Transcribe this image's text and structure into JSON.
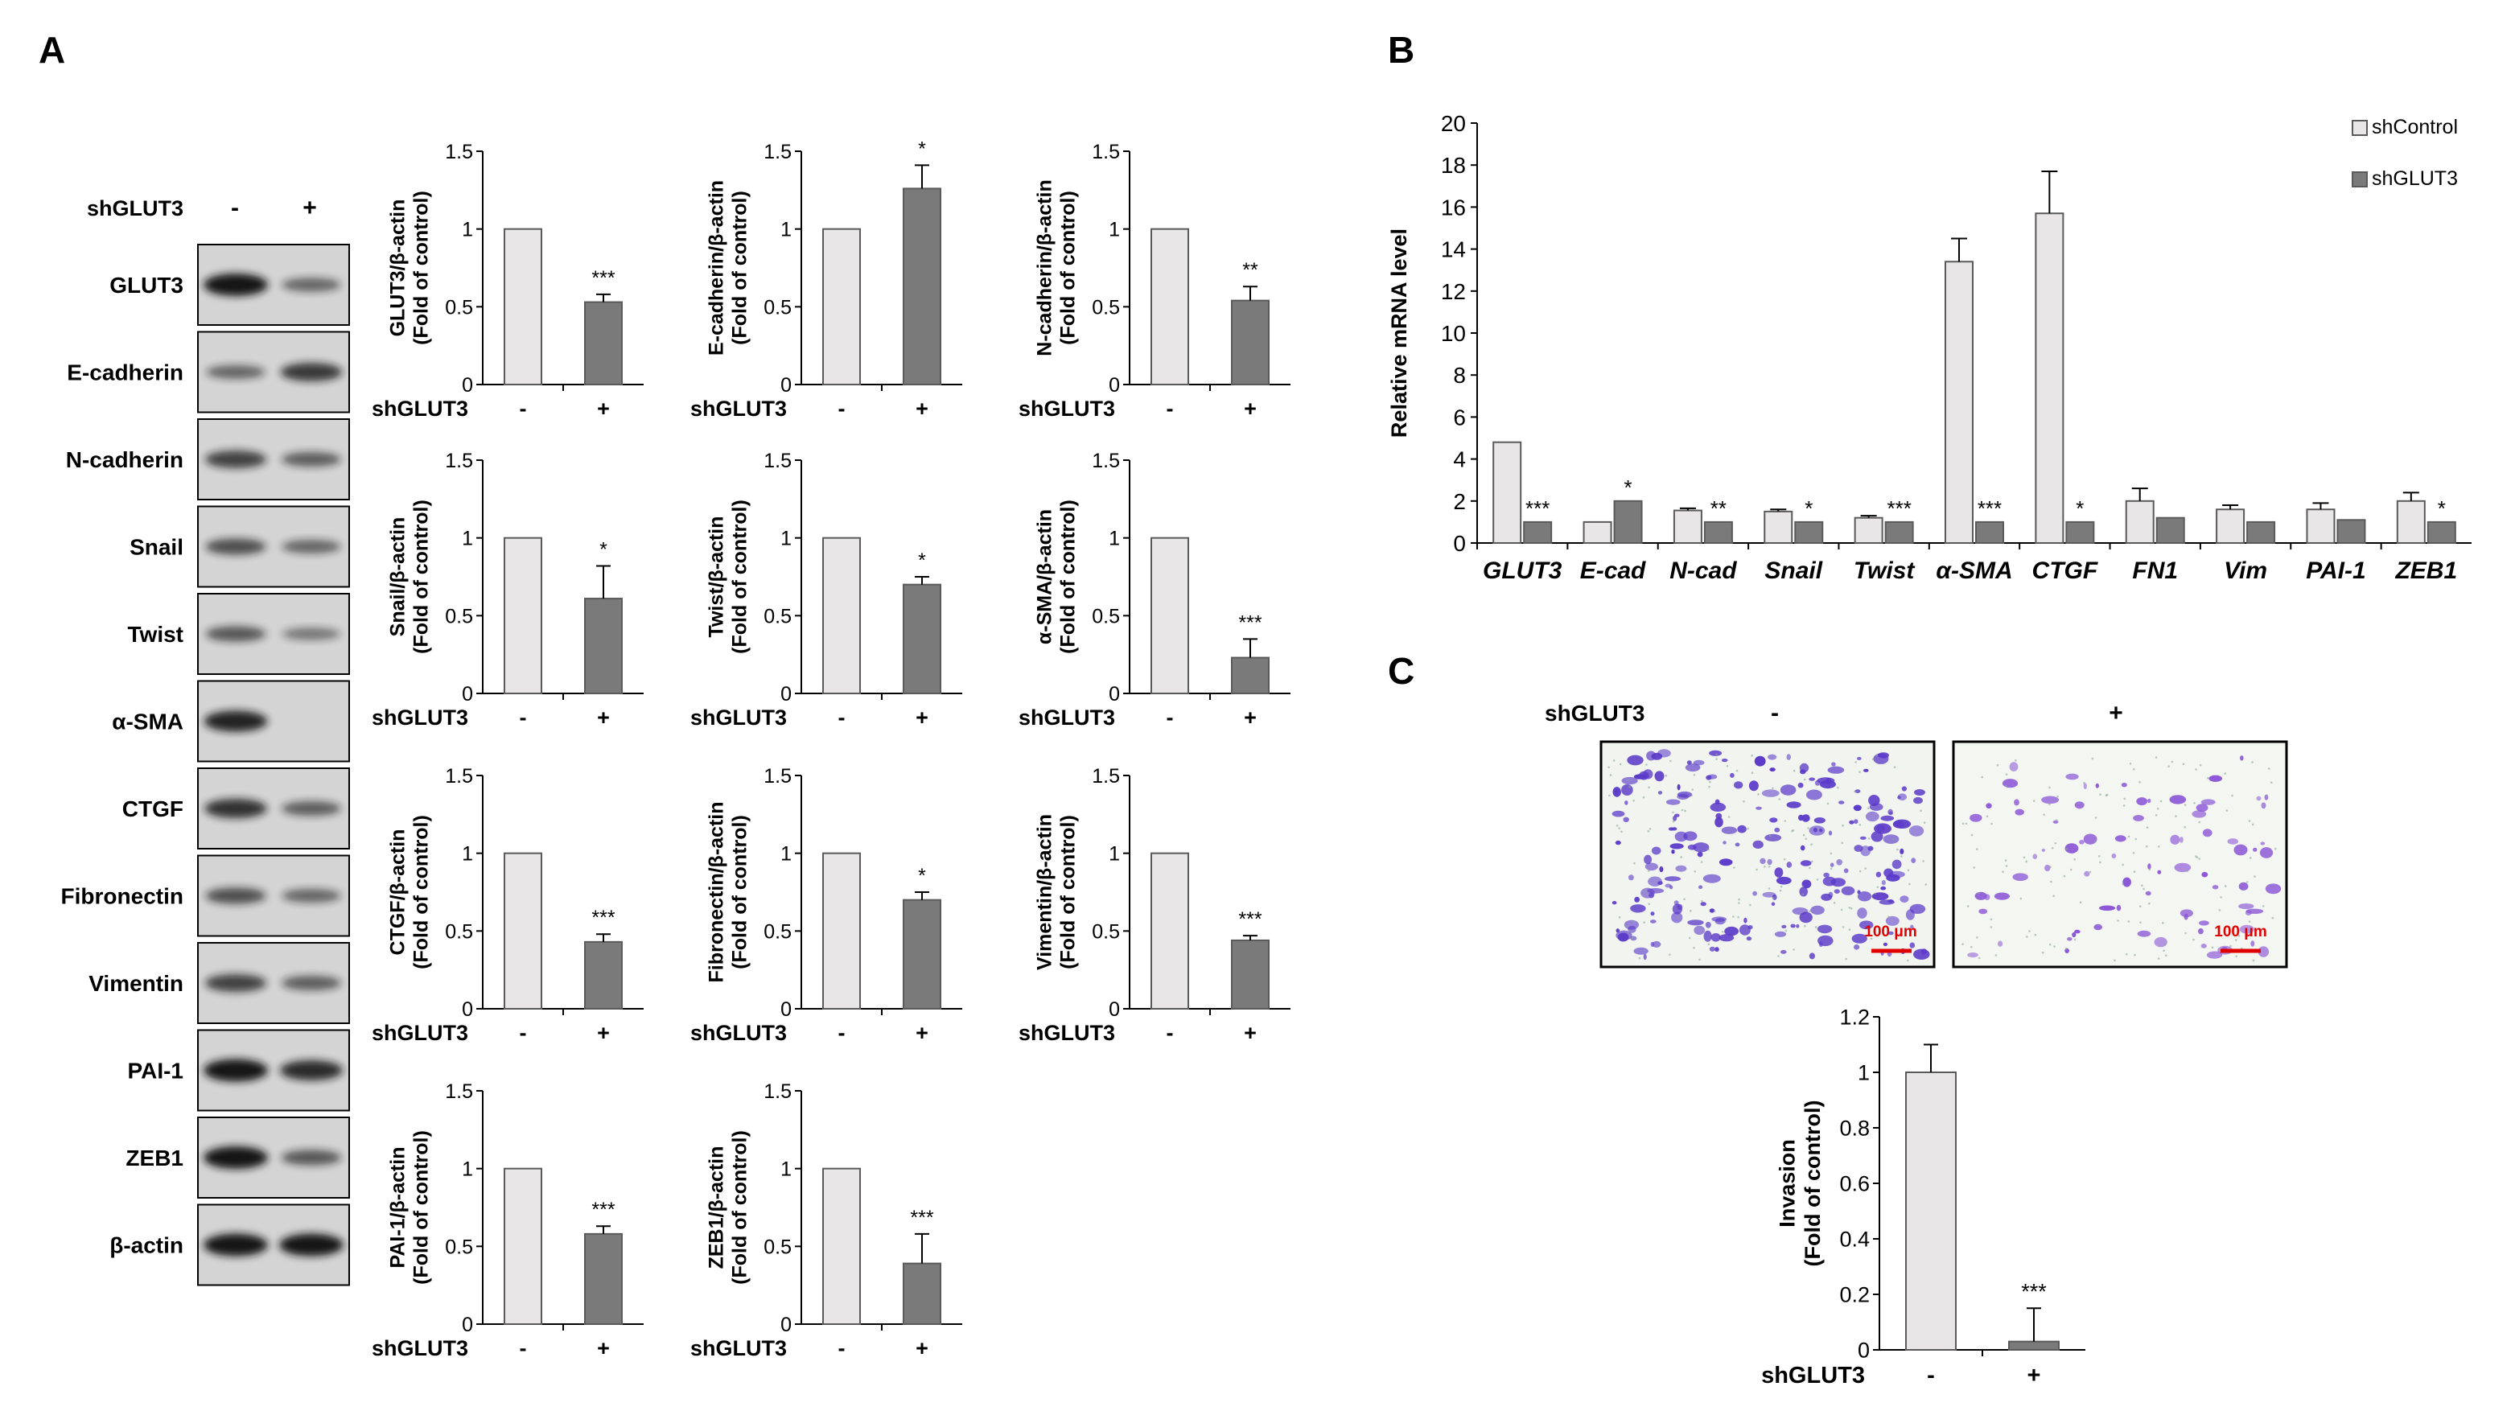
{
  "panel_labels": {
    "a": "A",
    "b": "B",
    "c": "C"
  },
  "western_blot": {
    "condition": "shGLUT3",
    "lanes": [
      "-",
      "+"
    ],
    "rows": [
      {
        "label": "GLUT3",
        "bands": [
          1.0,
          0.45
        ]
      },
      {
        "label": "E-cadherin",
        "bands": [
          0.45,
          0.75
        ]
      },
      {
        "label": "N-cadherin",
        "bands": [
          0.7,
          0.5
        ]
      },
      {
        "label": "Snail",
        "bands": [
          0.6,
          0.45
        ]
      },
      {
        "label": "Twist",
        "bands": [
          0.55,
          0.35
        ]
      },
      {
        "label": "α-SMA",
        "bands": [
          0.9,
          0.0
        ]
      },
      {
        "label": "CTGF",
        "bands": [
          0.8,
          0.5
        ]
      },
      {
        "label": "Fibronectin",
        "bands": [
          0.6,
          0.45
        ]
      },
      {
        "label": "Vimentin",
        "bands": [
          0.7,
          0.5
        ]
      },
      {
        "label": "PAI-1",
        "bands": [
          1.0,
          0.85
        ]
      },
      {
        "label": "ZEB1",
        "bands": [
          1.0,
          0.55
        ]
      },
      {
        "label": "β-actin",
        "bands": [
          1.0,
          1.0
        ]
      }
    ]
  },
  "invasion_images": {
    "condition": "shGLUT3",
    "lanes": [
      "-",
      "+"
    ],
    "scale_bar": "100 μm",
    "cell_density": [
      1.0,
      0.35
    ]
  },
  "chart_data": [
    {
      "type": "bar",
      "panel": "A",
      "ylabel": "GLUT3/β-actin",
      "ylabel2": "(Fold of control)",
      "xlabel": "shGLUT3",
      "categories": [
        "-",
        "+"
      ],
      "values": [
        1.0,
        0.53
      ],
      "errors": [
        0,
        0.05
      ],
      "significance": "***",
      "ylim": [
        0,
        1.5
      ],
      "yticks": [
        "0",
        "0.5",
        "1",
        "1.5"
      ]
    },
    {
      "type": "bar",
      "panel": "A",
      "ylabel": "E-cadherin/β-actin",
      "ylabel2": "(Fold of control)",
      "xlabel": "shGLUT3",
      "categories": [
        "-",
        "+"
      ],
      "values": [
        1.0,
        1.26
      ],
      "errors": [
        0,
        0.15
      ],
      "significance": "*",
      "ylim": [
        0,
        1.5
      ],
      "yticks": [
        "0",
        "0.5",
        "1",
        "1.5"
      ]
    },
    {
      "type": "bar",
      "panel": "A",
      "ylabel": "N-cadherin/β-actin",
      "ylabel2": "(Fold of control)",
      "xlabel": "shGLUT3",
      "categories": [
        "-",
        "+"
      ],
      "values": [
        1.0,
        0.54
      ],
      "errors": [
        0,
        0.09
      ],
      "significance": "**",
      "ylim": [
        0,
        1.5
      ],
      "yticks": [
        "0",
        "0.5",
        "1",
        "1.5"
      ]
    },
    {
      "type": "bar",
      "panel": "A",
      "ylabel": "Snail/β-actin",
      "ylabel2": "(Fold of control)",
      "xlabel": "shGLUT3",
      "categories": [
        "-",
        "+"
      ],
      "values": [
        1.0,
        0.61
      ],
      "errors": [
        0,
        0.21
      ],
      "significance": "*",
      "ylim": [
        0,
        1.5
      ],
      "yticks": [
        "0",
        "0.5",
        "1",
        "1.5"
      ]
    },
    {
      "type": "bar",
      "panel": "A",
      "ylabel": "Twist/β-actin",
      "ylabel2": "(Fold of control)",
      "xlabel": "shGLUT3",
      "categories": [
        "-",
        "+"
      ],
      "values": [
        1.0,
        0.7
      ],
      "errors": [
        0,
        0.05
      ],
      "significance": "*",
      "ylim": [
        0,
        1.5
      ],
      "yticks": [
        "0",
        "0.5",
        "1",
        "1.5"
      ]
    },
    {
      "type": "bar",
      "panel": "A",
      "ylabel": "α-SMA/β-actin",
      "ylabel2": "(Fold of control)",
      "xlabel": "shGLUT3",
      "categories": [
        "-",
        "+"
      ],
      "values": [
        1.0,
        0.23
      ],
      "errors": [
        0,
        0.12
      ],
      "significance": "***",
      "ylim": [
        0,
        1.5
      ],
      "yticks": [
        "0",
        "0.5",
        "1",
        "1.5"
      ]
    },
    {
      "type": "bar",
      "panel": "A",
      "ylabel": "CTGF/β-actin",
      "ylabel2": "(Fold of control)",
      "xlabel": "shGLUT3",
      "categories": [
        "-",
        "+"
      ],
      "values": [
        1.0,
        0.43
      ],
      "errors": [
        0,
        0.05
      ],
      "significance": "***",
      "ylim": [
        0,
        1.5
      ],
      "yticks": [
        "0",
        "0.5",
        "1",
        "1.5"
      ]
    },
    {
      "type": "bar",
      "panel": "A",
      "ylabel": "Fibronectin/β-actin",
      "ylabel2": "(Fold of control)",
      "xlabel": "shGLUT3",
      "categories": [
        "-",
        "+"
      ],
      "values": [
        1.0,
        0.7
      ],
      "errors": [
        0,
        0.05
      ],
      "significance": "*",
      "ylim": [
        0,
        1.5
      ],
      "yticks": [
        "0",
        "0.5",
        "1",
        "1.5"
      ]
    },
    {
      "type": "bar",
      "panel": "A",
      "ylabel": "Vimentin/β-actin",
      "ylabel2": "(Fold of control)",
      "xlabel": "shGLUT3",
      "categories": [
        "-",
        "+"
      ],
      "values": [
        1.0,
        0.44
      ],
      "errors": [
        0,
        0.03
      ],
      "significance": "***",
      "ylim": [
        0,
        1.5
      ],
      "yticks": [
        "0",
        "0.5",
        "1",
        "1.5"
      ]
    },
    {
      "type": "bar",
      "panel": "A",
      "ylabel": "PAI-1/β-actin",
      "ylabel2": "(Fold of control)",
      "xlabel": "shGLUT3",
      "categories": [
        "-",
        "+"
      ],
      "values": [
        1.0,
        0.58
      ],
      "errors": [
        0,
        0.05
      ],
      "significance": "***",
      "ylim": [
        0,
        1.5
      ],
      "yticks": [
        "0",
        "0.5",
        "1",
        "1.5"
      ]
    },
    {
      "type": "bar",
      "panel": "A",
      "ylabel": "ZEB1/β-actin",
      "ylabel2": "(Fold of control)",
      "xlabel": "shGLUT3",
      "categories": [
        "-",
        "+"
      ],
      "values": [
        1.0,
        0.39
      ],
      "errors": [
        0,
        0.19
      ],
      "significance": "***",
      "ylim": [
        0,
        1.5
      ],
      "yticks": [
        "0",
        "0.5",
        "1",
        "1.5"
      ]
    },
    {
      "type": "bar",
      "panel": "B",
      "ylabel": "Relative mRNA level",
      "categories": [
        "GLUT3",
        "E-cad",
        "N-cad",
        "Snail",
        "Twist",
        "α-SMA",
        "CTGF",
        "FN1",
        "Vim",
        "PAI-1",
        "ZEB1"
      ],
      "series": [
        {
          "name": "shControl",
          "color": "#e8e6e7",
          "values": [
            4.8,
            1.0,
            1.55,
            1.5,
            1.2,
            13.4,
            15.7,
            2.0,
            1.6,
            1.6,
            2.0
          ],
          "errors": [
            0,
            0,
            0.1,
            0.1,
            0.1,
            1.1,
            2.0,
            0.6,
            0.2,
            0.3,
            0.4
          ]
        },
        {
          "name": "shGLUT3",
          "color": "#7a7a7a",
          "values": [
            1.0,
            2.0,
            1.0,
            1.0,
            1.0,
            1.0,
            1.0,
            1.2,
            1.0,
            1.1,
            1.0
          ],
          "errors": [
            0,
            0,
            0,
            0,
            0,
            0,
            0,
            0,
            0,
            0,
            0
          ]
        }
      ],
      "significance": [
        "***",
        "*",
        "**",
        "*",
        "***",
        "***",
        "*",
        "",
        "",
        "",
        "*"
      ],
      "ylim": [
        0,
        20
      ],
      "yticks": [
        "0",
        "2",
        "4",
        "6",
        "8",
        "10",
        "12",
        "14",
        "16",
        "18",
        "20"
      ]
    },
    {
      "type": "bar",
      "panel": "C",
      "ylabel": "Invasion",
      "ylabel2": "(Fold of control)",
      "xlabel": "shGLUT3",
      "categories": [
        "-",
        "+"
      ],
      "values": [
        1.0,
        0.03
      ],
      "errors": [
        0.1,
        0.12
      ],
      "significance": "***",
      "ylim": [
        0,
        1.2
      ],
      "yticks": [
        "0",
        "0.2",
        "0.4",
        "0.6",
        "0.8",
        "1",
        "1.2"
      ]
    }
  ],
  "colors": {
    "control_bar": "#e8e6e7",
    "knockdown_bar": "#7a7a7a",
    "bar_edge": "#5a5a5a",
    "axis": "#000000",
    "blot_bg": "#d4d4d4",
    "band": "#141414",
    "cell_stain": "#5b3ac9",
    "scale_bar": "#e00000"
  }
}
